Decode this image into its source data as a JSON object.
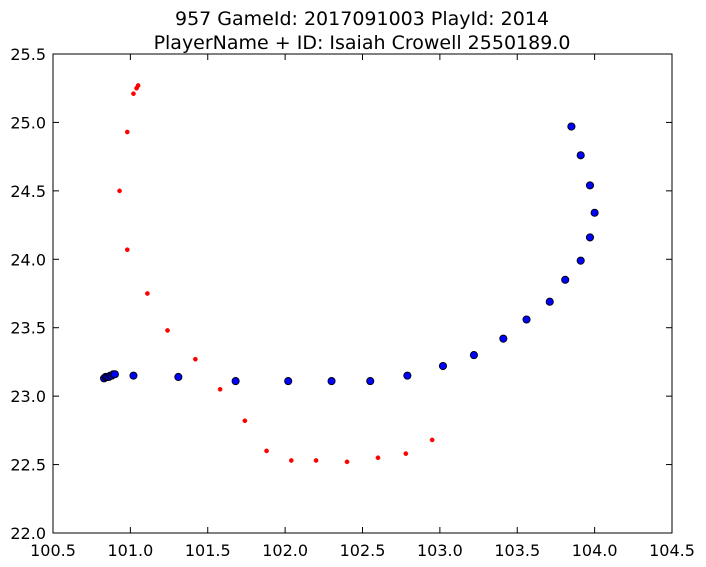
{
  "chart_data": {
    "type": "scatter",
    "title_line1": "957 GameId: 2017091003 PlayId: 2014",
    "title_line2": "PlayerName + ID: Isaiah Crowell 2550189.0",
    "xlabel": "",
    "ylabel": "",
    "xlim": [
      100.5,
      104.5
    ],
    "ylim": [
      22.0,
      25.5
    ],
    "xticks": [
      "100.5",
      "101.0",
      "101.5",
      "102.0",
      "102.5",
      "103.0",
      "103.5",
      "104.0",
      "104.5"
    ],
    "yticks": [
      "22.0",
      "22.5",
      "23.0",
      "23.5",
      "24.0",
      "24.5",
      "25.0",
      "25.5"
    ],
    "grid": false,
    "series": [
      {
        "color": "#ff0000",
        "marker": "small-dot",
        "points": [
          [
            101.05,
            25.27
          ],
          [
            101.04,
            25.25
          ],
          [
            101.02,
            25.21
          ],
          [
            100.98,
            24.93
          ],
          [
            100.93,
            24.5
          ],
          [
            100.98,
            24.07
          ],
          [
            101.11,
            23.75
          ],
          [
            101.24,
            23.48
          ],
          [
            101.42,
            23.27
          ],
          [
            101.58,
            23.05
          ],
          [
            101.74,
            22.82
          ],
          [
            101.88,
            22.6
          ],
          [
            102.04,
            22.53
          ],
          [
            102.2,
            22.53
          ],
          [
            102.4,
            22.52
          ],
          [
            102.6,
            22.55
          ],
          [
            102.78,
            22.58
          ],
          [
            102.95,
            22.68
          ]
        ]
      },
      {
        "color": "#0000ff",
        "marker": "circle",
        "points": [
          [
            100.83,
            23.13
          ],
          [
            100.84,
            23.14
          ],
          [
            100.85,
            23.14
          ],
          [
            100.86,
            23.14
          ],
          [
            100.87,
            23.15
          ],
          [
            100.88,
            23.15
          ],
          [
            100.89,
            23.16
          ],
          [
            100.9,
            23.16
          ],
          [
            101.02,
            23.15
          ],
          [
            101.31,
            23.14
          ],
          [
            101.68,
            23.11
          ],
          [
            102.02,
            23.11
          ],
          [
            102.3,
            23.11
          ],
          [
            102.55,
            23.11
          ],
          [
            102.79,
            23.15
          ],
          [
            103.02,
            23.22
          ],
          [
            103.22,
            23.3
          ],
          [
            103.41,
            23.42
          ],
          [
            103.56,
            23.56
          ],
          [
            103.71,
            23.69
          ],
          [
            103.81,
            23.85
          ],
          [
            103.91,
            23.99
          ],
          [
            103.97,
            24.16
          ],
          [
            104.0,
            24.34
          ],
          [
            103.97,
            24.54
          ],
          [
            103.91,
            24.76
          ],
          [
            103.85,
            24.97
          ]
        ]
      }
    ]
  }
}
